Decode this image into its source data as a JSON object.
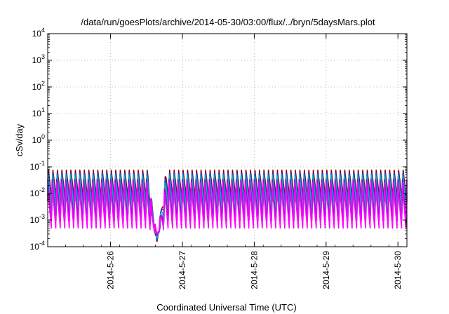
{
  "chart_data": {
    "type": "line",
    "title": "/data/run/goesPlots/archive/2014-05-30/03:00/flux/../bryn/5daysMars.plot",
    "xlabel": "Coordinated Universal Time (UTC)",
    "ylabel": "cSv/day",
    "x_ticks": [
      "2014-5-26",
      "2014-5-27",
      "2014-5-28",
      "2014-5-29",
      "2014-5-30"
    ],
    "y_scale": "log",
    "ylim": [
      0.0001,
      10000
    ],
    "y_ticks": [
      {
        "base": "10",
        "exp": "-4"
      },
      {
        "base": "10",
        "exp": "-3"
      },
      {
        "base": "10",
        "exp": "-2"
      },
      {
        "base": "10",
        "exp": "-1"
      },
      {
        "base": "10",
        "exp": "0"
      },
      {
        "base": "10",
        "exp": "1"
      },
      {
        "base": "10",
        "exp": "2"
      },
      {
        "base": "10",
        "exp": "3"
      },
      {
        "base": "10",
        "exp": "4"
      }
    ],
    "xlim": [
      "2014-05-25 03:00",
      "2014-05-30 03:00"
    ],
    "grid": true,
    "pattern": {
      "period_hours": 1.5,
      "dip_center": "2014-05-26 15:30",
      "dip_min": 0.00015
    },
    "series": [
      {
        "color": "#8B0000",
        "peak": 0.075,
        "trough": 0.005
      },
      {
        "color": "#1E3CFF",
        "peak": 0.065,
        "trough": 0.0035
      },
      {
        "color": "#00AAAA",
        "peak": 0.055,
        "trough": 0.002
      },
      {
        "color": "#20B2AA",
        "peak": 0.045,
        "trough": 0.0012
      },
      {
        "color": "#9400D3",
        "peak": 0.035,
        "trough": 0.0008
      },
      {
        "color": "#FF00FF",
        "peak": 0.025,
        "trough": 0.0005
      }
    ]
  }
}
